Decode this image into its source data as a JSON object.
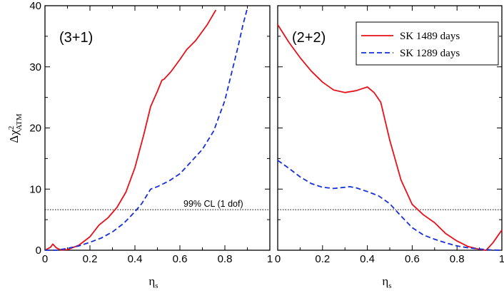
{
  "chart_data": [
    {
      "type": "line",
      "panel_label": "(3+1)",
      "xlim": [
        0,
        1
      ],
      "ylim": [
        0,
        40
      ],
      "x_ticks": [
        "0",
        "0.2",
        "0.4",
        "0.6",
        "0.8",
        "1"
      ],
      "y_ticks": [
        "0",
        "10",
        "20",
        "30",
        "40"
      ],
      "xlabel_main": "η",
      "xlabel_sub": "s",
      "ylabel_main": "Δχ",
      "ylabel_sup": "2",
      "ylabel_sub": "ATM",
      "cl_line": {
        "y": 6.63,
        "label": "99% CL (1 dof)"
      },
      "series": [
        {
          "name": "SK 1489 days",
          "color": "#e8101a",
          "style": "solid",
          "x": [
            0,
            0.01,
            0.025,
            0.035,
            0.05,
            0.07,
            0.1,
            0.15,
            0.2,
            0.24,
            0.28,
            0.32,
            0.36,
            0.4,
            0.44,
            0.47,
            0.5,
            0.52,
            0.53,
            0.56,
            0.6,
            0.63,
            0.67,
            0.72,
            0.76
          ],
          "y": [
            0,
            0.2,
            0.5,
            1.0,
            0.4,
            0.05,
            0.1,
            0.8,
            2.2,
            4.1,
            5.3,
            7.0,
            9.5,
            13.5,
            19.0,
            23.5,
            26.0,
            27.8,
            28.0,
            29.2,
            31.2,
            32.8,
            34.3,
            36.8,
            39.3
          ]
        },
        {
          "name": "SK 1289 days",
          "color": "#1530d8",
          "style": "dashed",
          "x": [
            0,
            0.05,
            0.1,
            0.15,
            0.2,
            0.25,
            0.3,
            0.35,
            0.4,
            0.43,
            0.45,
            0.47,
            0.5,
            0.55,
            0.6,
            0.65,
            0.7,
            0.75,
            0.8,
            0.83,
            0.86,
            0.88,
            0.9
          ],
          "y": [
            0,
            0,
            0.3,
            0.7,
            1.3,
            2.0,
            3.0,
            4.4,
            6.3,
            7.6,
            8.8,
            10.0,
            10.4,
            11.3,
            12.5,
            14.5,
            16.5,
            19.5,
            24.5,
            29.0,
            33.5,
            36.8,
            39.6
          ]
        }
      ]
    },
    {
      "type": "line",
      "panel_label": "(2+2)",
      "xlim": [
        0,
        1
      ],
      "ylim": [
        0,
        40
      ],
      "x_ticks": [
        "0",
        "0.2",
        "0.4",
        "0.6",
        "0.8",
        "1"
      ],
      "y_ticks": [
        "0",
        "10",
        "20",
        "30",
        "40"
      ],
      "xlabel_main": "η",
      "xlabel_sub": "s",
      "cl_line": {
        "y": 6.63,
        "label": ""
      },
      "legend": {
        "placement": "top-right"
      },
      "series": [
        {
          "name": "SK 1489 days",
          "color": "#e8101a",
          "style": "solid",
          "x": [
            0,
            0.05,
            0.1,
            0.15,
            0.2,
            0.25,
            0.3,
            0.35,
            0.4,
            0.43,
            0.46,
            0.5,
            0.55,
            0.6,
            0.65,
            0.7,
            0.75,
            0.8,
            0.85,
            0.9,
            0.93,
            0.96,
            1.0
          ],
          "y": [
            36.9,
            34.0,
            31.5,
            29.3,
            27.5,
            26.2,
            25.8,
            26.1,
            26.7,
            25.8,
            24.2,
            18.0,
            11.5,
            7.5,
            5.8,
            4.5,
            2.7,
            1.5,
            0.6,
            0.15,
            0.0,
            1.2,
            3.3
          ]
        },
        {
          "name": "SK 1289 days",
          "color": "#1530d8",
          "style": "dashed",
          "x": [
            0,
            0.05,
            0.1,
            0.15,
            0.2,
            0.25,
            0.3,
            0.32,
            0.35,
            0.4,
            0.45,
            0.5,
            0.55,
            0.6,
            0.65,
            0.7,
            0.75,
            0.8,
            0.85,
            0.9,
            0.95,
            1.0
          ],
          "y": [
            14.7,
            13.4,
            12.0,
            10.9,
            10.3,
            10.1,
            10.3,
            10.4,
            10.2,
            9.6,
            8.9,
            7.6,
            5.6,
            3.7,
            2.5,
            1.8,
            1.2,
            0.7,
            0.4,
            0.2,
            0.05,
            0.0
          ]
        }
      ]
    }
  ]
}
